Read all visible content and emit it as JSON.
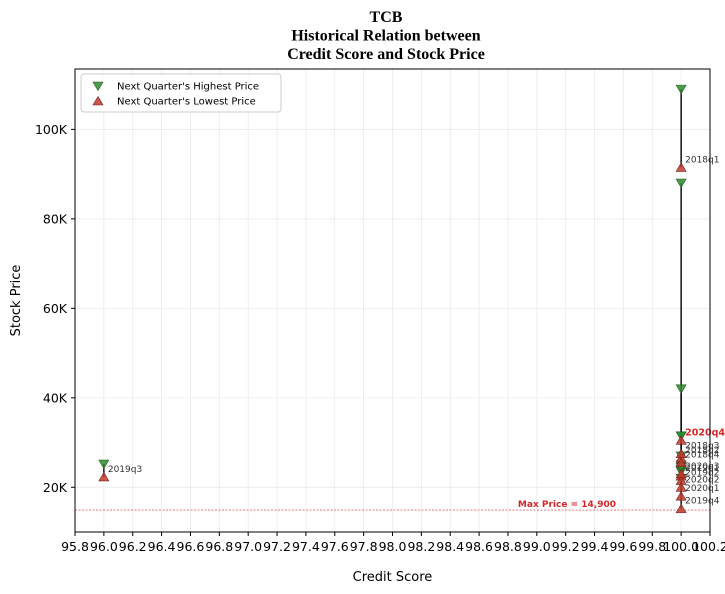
{
  "chart_data": {
    "type": "scatter",
    "title_lines": [
      "TCB",
      "Historical Relation between",
      "Credit Score and Stock Price"
    ],
    "xlabel": "Credit Score",
    "ylabel": "Stock Price",
    "xlim": [
      95.8,
      100.2
    ],
    "ylim": [
      10000,
      113500
    ],
    "x_ticks": [
      95.8,
      96.0,
      96.2,
      96.4,
      96.6,
      96.8,
      97.0,
      97.2,
      97.4,
      97.6,
      97.8,
      98.0,
      98.2,
      98.4,
      98.6,
      98.8,
      99.0,
      99.2,
      99.4,
      99.6,
      99.8,
      100.0,
      100.2
    ],
    "x_tick_labels": [
      "95.8",
      "96.0",
      "96.2",
      "96.4",
      "96.6",
      "96.8",
      "97.0",
      "97.2",
      "97.4",
      "97.6",
      "97.8",
      "98.0",
      "98.2",
      "98.4",
      "98.6",
      "98.8",
      "99.0",
      "99.2",
      "99.4",
      "99.6",
      "99.8",
      "100.0",
      "100.2"
    ],
    "y_ticks": [
      20000,
      40000,
      60000,
      80000,
      100000
    ],
    "y_tick_labels": [
      "20K",
      "40K",
      "60K",
      "80K",
      "100K"
    ],
    "grid": true,
    "legend_position": "top-left",
    "legend": {
      "high_label": "Next Quarter's Highest Price",
      "low_label": "Next Quarter's Lowest Price"
    },
    "colors": {
      "high": "#2e8b2e",
      "low": "#c0392b",
      "connector": "#000000",
      "reference": "#d62728",
      "highlight_label": "#d62728"
    },
    "reference_line": {
      "value": 14900,
      "label": "Max Price = 14,900"
    },
    "points": [
      {
        "quarter": "2018q1",
        "x": 100.0,
        "high": 109000,
        "low": 91500
      },
      {
        "quarter": "2018q2",
        "x": 100.0,
        "high": 88000,
        "low": 26500
      },
      {
        "quarter": "2018q3",
        "x": 100.0,
        "high": 42000,
        "low": 27500
      },
      {
        "quarter": "2018q4",
        "x": 100.0,
        "high": 31500,
        "low": 25500
      },
      {
        "quarter": "2019q1",
        "x": 100.0,
        "high": 27000,
        "low": 22500
      },
      {
        "quarter": "2019q2",
        "x": 100.0,
        "high": 25000,
        "low": 21500
      },
      {
        "quarter": "2019q3",
        "x": 96.0,
        "high": 25200,
        "low": 22300
      },
      {
        "quarter": "2019q4",
        "x": 100.0,
        "high": 23500,
        "low": 15200
      },
      {
        "quarter": "2020q1",
        "x": 100.0,
        "high": 24000,
        "low": 18000
      },
      {
        "quarter": "2020q2",
        "x": 100.0,
        "high": 22000,
        "low": 20000
      },
      {
        "quarter": "2020q3",
        "x": 100.0,
        "high": 24500,
        "low": 23000
      },
      {
        "quarter": "2020q4",
        "x": 100.0,
        "high": 31500,
        "low": 30500,
        "highlight": true
      }
    ]
  }
}
